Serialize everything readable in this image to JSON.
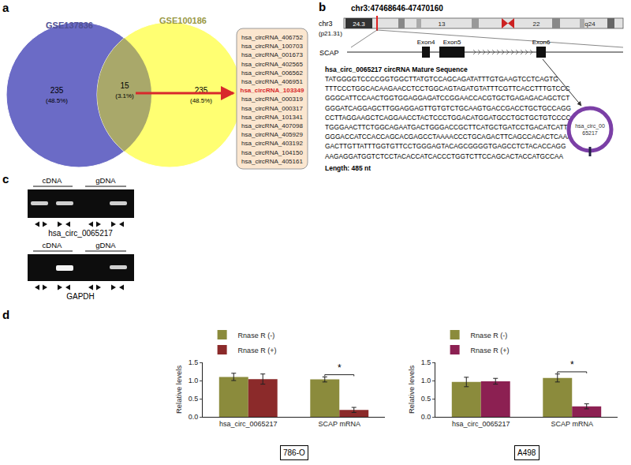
{
  "panels": {
    "a": {
      "label": "a",
      "sets": [
        {
          "name": "GSE137836",
          "color": "#6b6bc6",
          "count": 235,
          "percent": "(48.5%)"
        },
        {
          "name": "GSE100186",
          "color": "#ffff72",
          "count": 235,
          "percent": "(48.5%)"
        }
      ],
      "overlap": {
        "count": 15,
        "percent": "(3.1%)",
        "color": "#a9a86a"
      },
      "list": [
        "hsa_circRNA_406752",
        "hsa_circRNA_100703",
        "hsa_circRNA_001673",
        "hsa_circRNA_402565",
        "hsa_circRNA_006562",
        "hsa_circRNA_406951",
        "hsa_circRNA_103349",
        "hsa_circRNA_000319",
        "hsa_circRNA_000317",
        "hsa_circRNA_101341",
        "hsa_circRNA_407098",
        "hsa_circRNA_405929",
        "hsa_circRNA_403192",
        "hsa_circRNA_104150",
        "hsa_circRNA_405161"
      ],
      "highlight": "hsa_circRNA_103349"
    },
    "b": {
      "label": "b",
      "locus": "chr3:47468646-47470160",
      "chromosome": "chr3",
      "band": "(p21.31)",
      "ideogram_labels": [
        "24.3",
        "13",
        "22",
        "q24"
      ],
      "gene": "SCAP",
      "exons": [
        "Exon4",
        "Exon5",
        "Exon6"
      ],
      "sequence_title": "hsa_circ_0065217 circRNA Mature Sequence",
      "sequence": [
        "TATGGGGTCCCCGGTGGCTTATGTCCAGCAGATATTTGTGAAGTCCTCAGTG",
        "TTTCCCTGGCACAAGAACCTCCTGGCAGTAGATGTATTTCGTTCACCTTTGTCCC",
        "GGGCATTCCAACTGGTGGAGGAGATCCGGAACCACGTGCTGAGAGACAGCTCT",
        "GGGATCAGGAGCTTGGAGGAGTTGTGTCTGCAAGTGACCGACCTGCTGCCAGG",
        "CCTTAGGAAGCTCAGGAACCTACTCCCTGGACATGGATGCCTGCTGCTGTCCCC",
        "TGGGAACTTCTGGCAGAATGACTGGGACCGCTTCATGCTGATCCTGACATCATT",
        "GGGACCATCCACCAGCACGAGCCTAAAACCCTGCAGACTTCAGCCACACTCAAA",
        "GACTTGTTATTTGGTGTTCCTGGGAGTACAGCGGGGTGAGCCTCTACACCAGG",
        "AAGAGGATGGTCTCCTACACCATCACCCTGGTCTTCCAGCACTACCATGCCAA"
      ],
      "length": "Length: 485 nt",
      "circle_label": [
        "hsa_circ_00",
        "65217"
      ]
    },
    "c": {
      "label": "c",
      "gels": [
        {
          "name": "hsa_circ_0065217",
          "groups": [
            "cDNA",
            "gDNA"
          ],
          "bands": [
            true,
            true,
            false,
            true
          ]
        },
        {
          "name": "GAPDH",
          "groups": [
            "cDNA",
            "gDNA"
          ],
          "bands": [
            false,
            true,
            false,
            true
          ]
        }
      ]
    },
    "d": {
      "label": "d"
    }
  },
  "chart_data": [
    {
      "type": "bar",
      "title": "786-O",
      "categories": [
        "hsa_circ_0065217",
        "SCAP mRNA"
      ],
      "series": [
        {
          "name": "Rnase R (-)",
          "color": "#8b8b3c",
          "values": [
            1.1,
            1.03
          ],
          "errors": [
            0.1,
            0.07
          ]
        },
        {
          "name": "Rnase R (+)",
          "color": "#8b2a2a",
          "values": [
            1.04,
            0.19
          ],
          "errors": [
            0.14,
            0.07
          ]
        }
      ],
      "y_label": "Relative levels",
      "ylim": [
        0,
        1.5
      ],
      "yticks": [
        {
          "value": 0,
          "label": "0.0"
        },
        {
          "value": 0.5,
          "label": "0.5"
        },
        {
          "value": 1,
          "label": "1.0"
        },
        {
          "value": 1.5,
          "label": "1.5"
        }
      ],
      "grid": false,
      "legend": "top left",
      "annotations": [
        {
          "text": "*",
          "category": "SCAP mRNA"
        }
      ]
    },
    {
      "type": "bar",
      "title": "A498",
      "categories": [
        "hsa_circ_0065217",
        "SCAP mRNA"
      ],
      "series": [
        {
          "name": "Rnase R (-)",
          "color": "#8b8b3c",
          "values": [
            0.96,
            1.07
          ],
          "errors": [
            0.13,
            0.11
          ]
        },
        {
          "name": "Rnase R (+)",
          "color": "#8c2052",
          "values": [
            0.98,
            0.29
          ],
          "errors": [
            0.08,
            0.07
          ]
        }
      ],
      "y_label": "Relative levels",
      "ylim": [
        0,
        1.5
      ],
      "yticks": [
        {
          "value": 0,
          "label": "0.0"
        },
        {
          "value": 0.5,
          "label": "0.5"
        },
        {
          "value": 1,
          "label": "1.0"
        },
        {
          "value": 1.5,
          "label": "1.5"
        }
      ],
      "grid": false,
      "legend": "top left",
      "annotations": [
        {
          "text": "*",
          "category": "SCAP mRNA"
        }
      ]
    }
  ]
}
